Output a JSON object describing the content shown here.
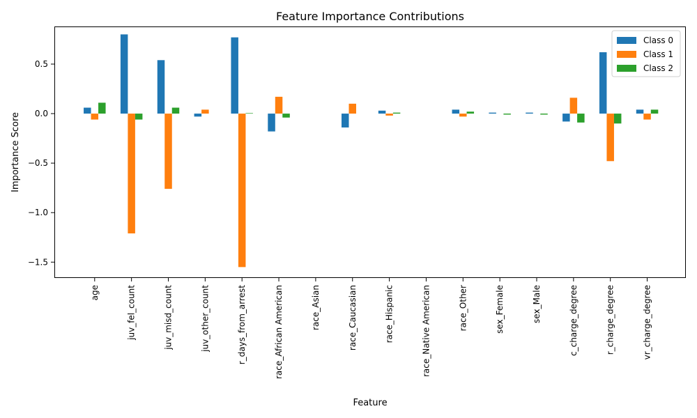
{
  "chart_data": {
    "type": "bar",
    "title": "Feature Importance Contributions",
    "xlabel": "Feature",
    "ylabel": "Importance Score",
    "ylim": [
      -1.66,
      0.88
    ],
    "yticks": [
      -1.5,
      -1.0,
      -0.5,
      0.0,
      0.5
    ],
    "ytick_labels": [
      "−1.5",
      "−1.0",
      "−0.5",
      "0.0",
      "0.5"
    ],
    "grid": false,
    "legend_position": "top-right",
    "categories": [
      "age",
      "juv_fel_count",
      "juv_misd_count",
      "juv_other_count",
      "r_days_from_arrest",
      "race_African American",
      "race_Asian",
      "race_Caucasian",
      "race_Hispanic",
      "race_Native American",
      "race_Other",
      "sex_Female",
      "sex_Male",
      "c_charge_degree",
      "r_charge_degree",
      "vr_charge_degree"
    ],
    "series": [
      {
        "name": "Class 0",
        "color": "#1f77b4",
        "values": [
          0.06,
          0.8,
          0.54,
          -0.03,
          0.77,
          -0.18,
          0.0,
          -0.14,
          0.03,
          0.0,
          0.04,
          0.01,
          0.01,
          -0.08,
          0.62,
          0.04
        ]
      },
      {
        "name": "Class 1",
        "color": "#ff7f0e",
        "values": [
          -0.06,
          -1.21,
          -0.76,
          0.04,
          -1.55,
          0.17,
          0.0,
          0.1,
          -0.02,
          0.0,
          -0.03,
          0.0,
          0.0,
          0.16,
          -0.48,
          -0.06
        ]
      },
      {
        "name": "Class 2",
        "color": "#2ca02c",
        "values": [
          0.11,
          -0.06,
          0.06,
          0.0,
          0.005,
          -0.04,
          0.0,
          0.0,
          0.01,
          0.0,
          0.02,
          -0.01,
          -0.01,
          -0.09,
          -0.1,
          0.04
        ]
      }
    ]
  }
}
